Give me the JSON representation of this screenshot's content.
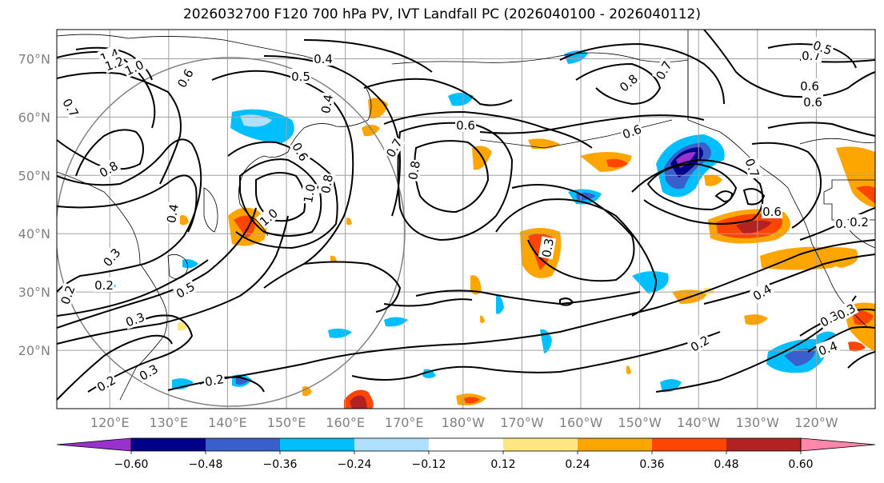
{
  "title": "2026032700 F120 700 hPa PV, IVT Landfall PC (2026040100 - 2026040112)",
  "map": {
    "projection": "cylindrical",
    "lon_range": [
      111,
      250
    ],
    "lat_range": [
      10,
      75
    ],
    "grid": true,
    "lat_labels": [
      "70°N",
      "60°N",
      "50°N",
      "40°N",
      "30°N",
      "20°N"
    ],
    "lon_labels": [
      "120°E",
      "130°E",
      "140°E",
      "150°E",
      "160°E",
      "170°E",
      "180°W",
      "170°W",
      "160°W",
      "150°W",
      "140°W",
      "130°W",
      "120°W"
    ],
    "colors": {
      "grid": "#a0a0a0",
      "contour": "#000000",
      "circle": "#808080",
      "coast": "#000000"
    }
  },
  "contour_labels": [
    "1.4",
    "1.2",
    "1.0",
    "0.6",
    "0.4",
    "0.5",
    "0.7",
    "1.0",
    "0.8",
    "0.4",
    "0.6",
    "0.6",
    "0.6",
    "0.7",
    "0.8",
    "0.8",
    "0.7",
    "0.6",
    "0.7",
    "0.5",
    "0.6",
    "0.6",
    "0.7",
    "0.7",
    "0.4",
    "1.0",
    "0.8",
    "0.2",
    "0.3",
    "0.5",
    "0.3",
    "0.2",
    "0.4",
    "0.3",
    "0.2",
    "0.2",
    "0.3",
    "0.2",
    "0.4",
    "0.3",
    "0.3",
    "0.2"
  ],
  "colorbar": {
    "ticks": [
      "−0.60",
      "−0.48",
      "−0.36",
      "−0.24",
      "−0.12",
      "0.12",
      "0.24",
      "0.36",
      "0.48",
      "0.60"
    ],
    "bins": [
      {
        "color": "#9932cc",
        "lo": -0.72,
        "hi": -0.6
      },
      {
        "color": "#00008b",
        "lo": -0.6,
        "hi": -0.48
      },
      {
        "color": "#3a5fcd",
        "lo": -0.48,
        "hi": -0.36
      },
      {
        "color": "#00bfff",
        "lo": -0.36,
        "hi": -0.24
      },
      {
        "color": "#b0e0ff",
        "lo": -0.24,
        "hi": -0.12
      },
      {
        "color": "#ffffff",
        "lo": -0.12,
        "hi": 0.12
      },
      {
        "color": "#ffe680",
        "lo": 0.12,
        "hi": 0.24
      },
      {
        "color": "#ffa500",
        "lo": 0.24,
        "hi": 0.36
      },
      {
        "color": "#ff4500",
        "lo": 0.36,
        "hi": 0.48
      },
      {
        "color": "#b22222",
        "lo": 0.48,
        "hi": 0.6
      },
      {
        "color": "#ff88aa",
        "lo": 0.6,
        "hi": 0.72
      }
    ]
  }
}
